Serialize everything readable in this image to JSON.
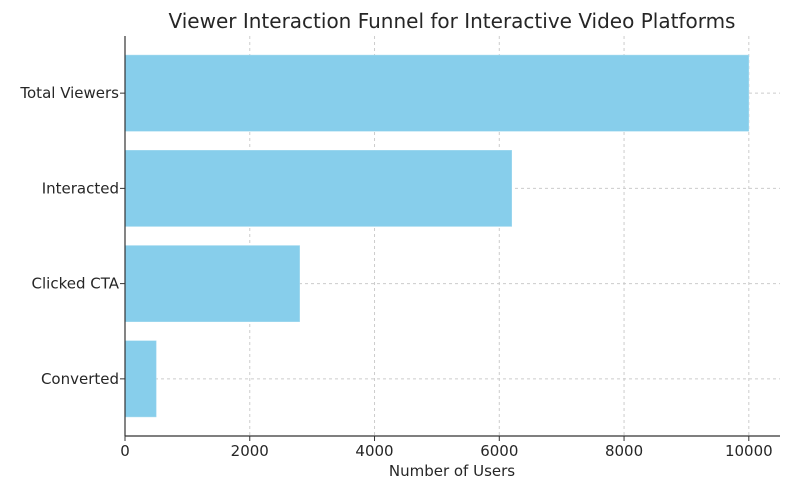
{
  "chart_data": {
    "type": "bar",
    "orientation": "horizontal",
    "title": "Viewer Interaction Funnel for Interactive Video Platforms",
    "xlabel": "Number of Users",
    "ylabel": "",
    "categories": [
      "Total Viewers",
      "Interacted",
      "Clicked CTA",
      "Converted"
    ],
    "values": [
      10000,
      6200,
      2800,
      500
    ],
    "xlim": [
      0,
      10500
    ],
    "xticks": [
      0,
      2000,
      4000,
      6000,
      8000,
      10000
    ],
    "xtick_labels": [
      "0",
      "2000",
      "4000",
      "6000",
      "8000",
      "10000"
    ],
    "grid": true,
    "bar_color": "#87CEEB"
  }
}
